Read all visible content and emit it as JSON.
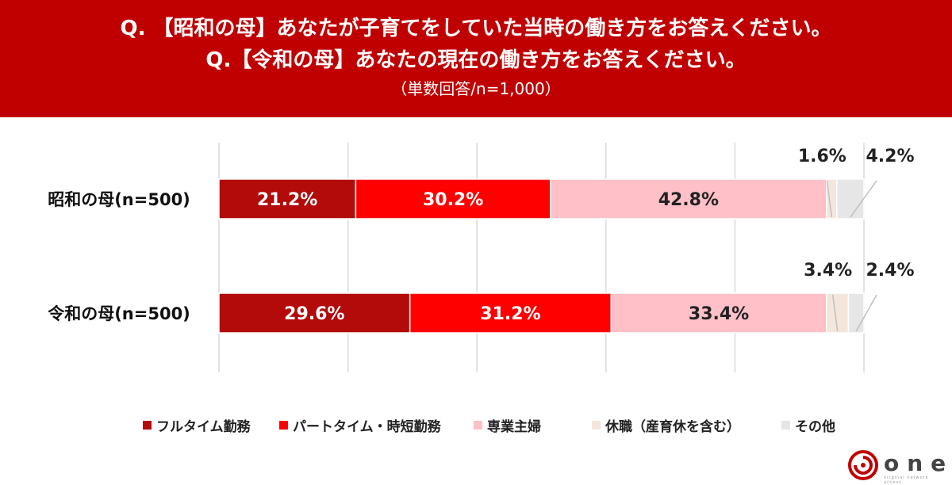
{
  "header": {
    "question1": "Q. 【昭和の母】あなたが子育てをしていた当時の働き方をお答えください。",
    "question2": "Q.【令和の母】あなたの現在の働き方をお答えください。",
    "subtitle": "（単数回答/n=1,000）"
  },
  "chart_data": {
    "type": "bar",
    "orientation": "horizontal-stacked-100",
    "categories": [
      "昭和の母(n=500)",
      "令和の母(n=500)"
    ],
    "series": [
      {
        "name": "フルタイム勤務",
        "values": [
          21.2,
          29.6
        ],
        "labels": [
          "21.2%",
          "29.6%"
        ],
        "color": "#b30a0a"
      },
      {
        "name": "パートタイム・時短勤務",
        "values": [
          30.2,
          31.2
        ],
        "labels": [
          "30.2%",
          "31.2%"
        ],
        "color": "#ff0000"
      },
      {
        "name": "専業主婦",
        "values": [
          42.8,
          33.4
        ],
        "labels": [
          "42.8%",
          "33.4%"
        ],
        "color": "#ffc0c7"
      },
      {
        "name": "休職（産育休を含む）",
        "values": [
          1.6,
          3.4
        ],
        "labels": [
          "1.6%",
          "3.4%"
        ],
        "color": "#f5e6dc"
      },
      {
        "name": "その他",
        "values": [
          4.2,
          2.4
        ],
        "labels": [
          "4.2%",
          "2.4%"
        ],
        "color": "#e6e6e6"
      }
    ],
    "xlim": [
      0,
      100
    ],
    "grid": true,
    "legend_position": "bottom"
  },
  "brand": {
    "logo_text": "one",
    "tagline": "original network access"
  }
}
